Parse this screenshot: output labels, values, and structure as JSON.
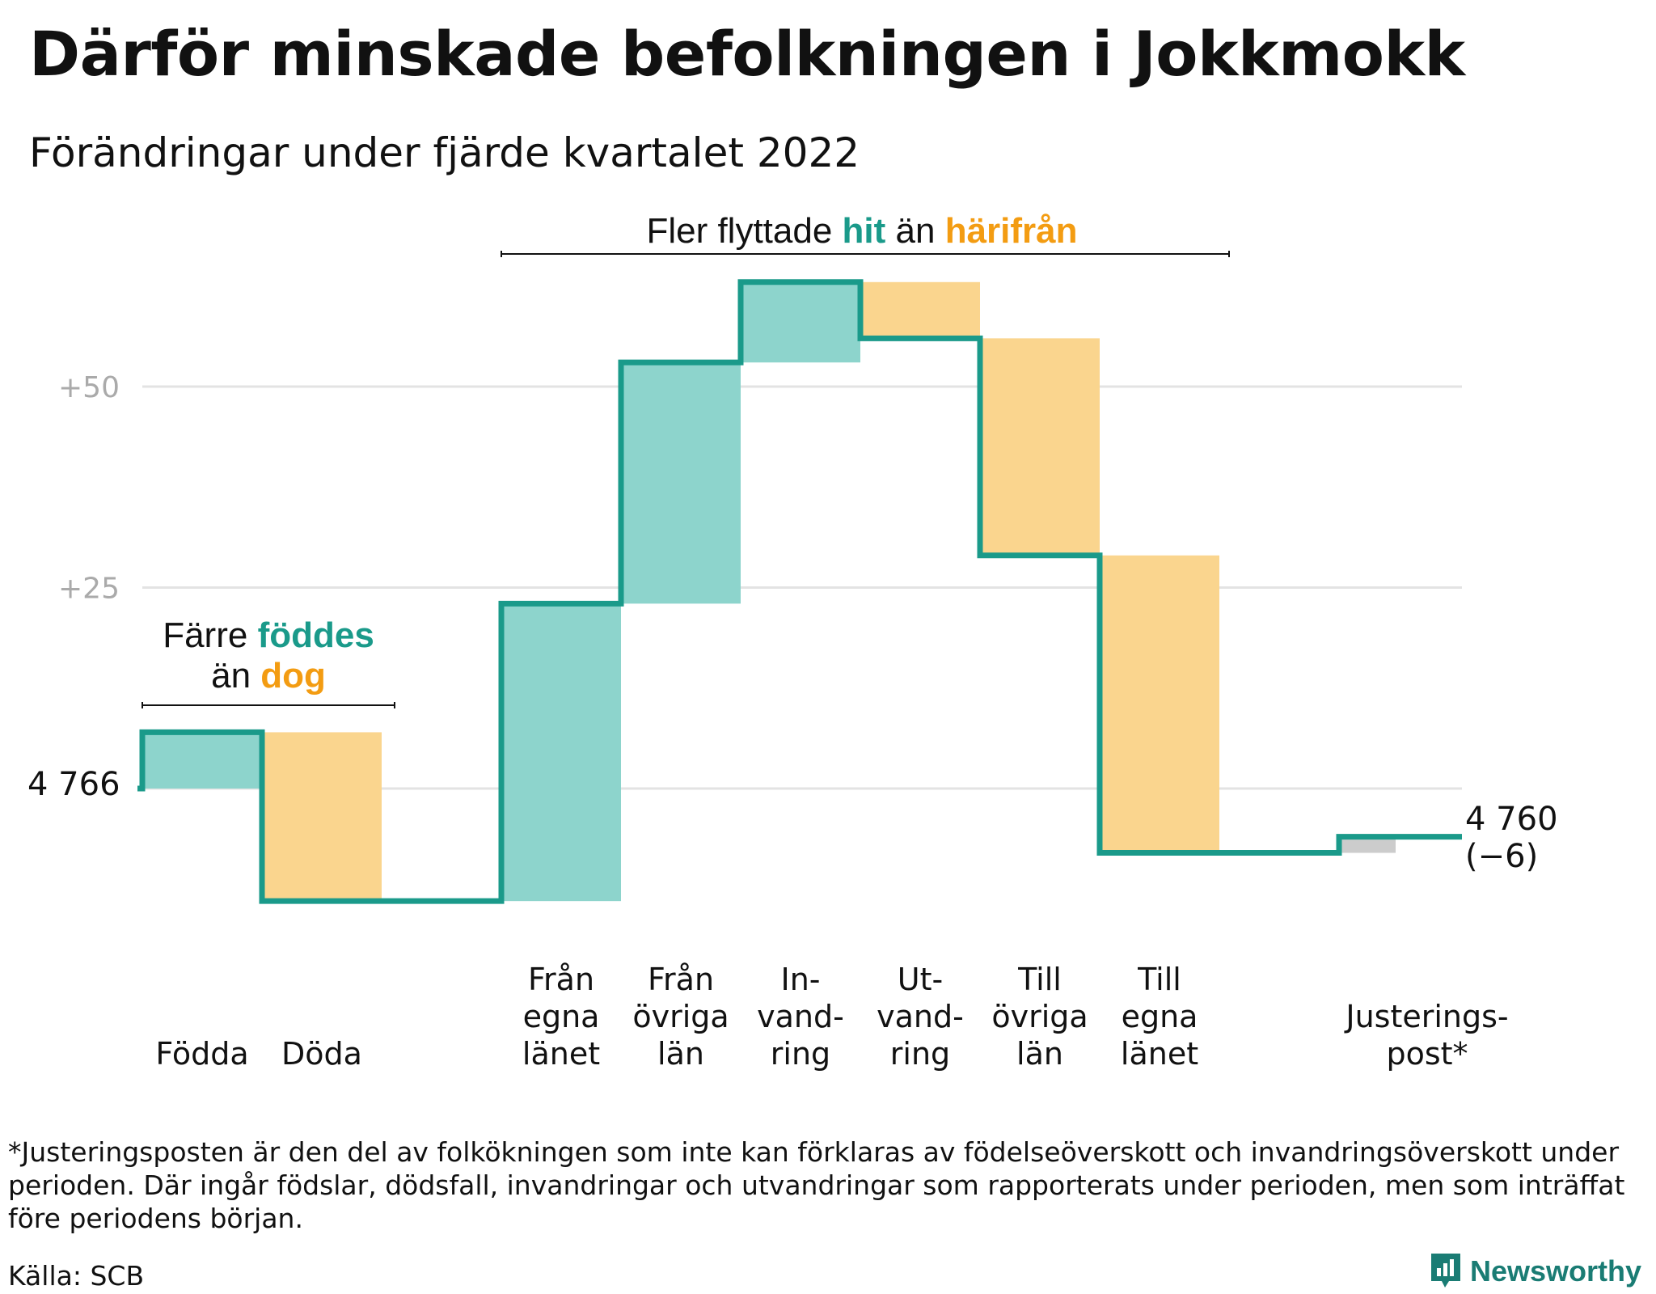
{
  "title": "Därför minskade befolkningen i Jokkmokk",
  "subtitle": "Förändringar under fjärde kvartalet 2022",
  "colors": {
    "inflow": "#8dd4cc",
    "outflow": "#fad58e",
    "adjust": "#cccccc",
    "line": "#1a9a8a",
    "inflow_text": "#1a9a8a",
    "outflow_text": "#f39c12",
    "grid": "#e3e3e3"
  },
  "annotations": {
    "births": {
      "line1_pre": "Färre ",
      "line1_hl": "föddes",
      "line2_pre": "än ",
      "line2_hl": "dog"
    },
    "migration": {
      "pre": "Fler flyttade ",
      "hl1": "hit",
      "mid": " än ",
      "hl2": "härifrån"
    }
  },
  "start_label": "4 766",
  "end_label": {
    "line1": "4 760",
    "line2": "(−6)"
  },
  "chart_data": {
    "type": "waterfall",
    "title": "Därför minskade befolkningen i Jokkmokk",
    "subtitle": "Förändringar under fjärde kvartalet 2022",
    "start_value": 4766,
    "end_value": 4760,
    "net_change": -6,
    "y_ticks": [
      {
        "offset": 25,
        "label": "+25"
      },
      {
        "offset": 50,
        "label": "+50"
      }
    ],
    "ylim_offset": [
      -20,
      65
    ],
    "steps": [
      {
        "category": [
          "Födda"
        ],
        "change": 7,
        "kind": "inflow"
      },
      {
        "category": [
          "Döda"
        ],
        "change": -21,
        "kind": "outflow"
      },
      {
        "category": [],
        "change": 0,
        "kind": "gap"
      },
      {
        "category": [
          "Från",
          "egna",
          "länet"
        ],
        "change": 37,
        "kind": "inflow"
      },
      {
        "category": [
          "Från",
          "övriga",
          "län"
        ],
        "change": 30,
        "kind": "inflow"
      },
      {
        "category": [
          "In-",
          "vand-",
          "ring"
        ],
        "change": 10,
        "kind": "inflow"
      },
      {
        "category": [
          "Ut-",
          "vand-",
          "ring"
        ],
        "change": -7,
        "kind": "outflow"
      },
      {
        "category": [
          "Till",
          "övriga",
          "län"
        ],
        "change": -27,
        "kind": "outflow"
      },
      {
        "category": [
          "Till",
          "egna",
          "länet"
        ],
        "change": -37,
        "kind": "outflow"
      },
      {
        "category": [],
        "change": 0,
        "kind": "gap"
      },
      {
        "category": [
          "Justerings-",
          "post*"
        ],
        "change": 2,
        "kind": "adjust"
      }
    ]
  },
  "footnote": "*Justeringsposten är den del av folkökningen som inte kan förklaras av födelseöverskott och invandringsöverskott under perioden. Där ingår födslar, dödsfall, invandringar och utvandringar som rapporterats under perioden, men som inträffat före periodens början.",
  "source": "Källa: SCB",
  "brand": {
    "name": "Newsworthy",
    "icon": "newsworthy-logo-icon"
  }
}
